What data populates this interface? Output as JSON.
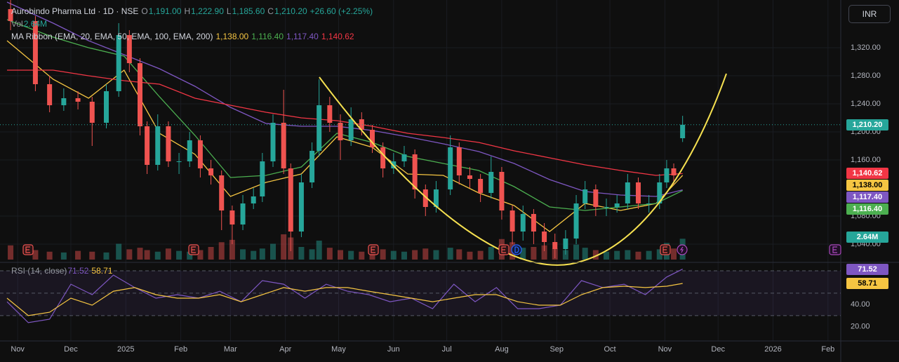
{
  "chart_data": {
    "type": "candlestick",
    "title": "Aurobindo Pharma Ltd · 1D · NSE",
    "ohlc": [
      {
        "key": "O",
        "label": "1,191.00"
      },
      {
        "key": "H",
        "label": "1,222.90"
      },
      {
        "key": "L",
        "label": "1,185.60"
      },
      {
        "key": "C",
        "label": "1,210.20"
      }
    ],
    "change": "+26.60 (+2.25%)",
    "currency": "INR",
    "up_color": "#26a69a",
    "down_color": "#ef5350",
    "x": [
      -4,
      10,
      18,
      26,
      34,
      42,
      50,
      57,
      63,
      69,
      73,
      79,
      85,
      91,
      97,
      103,
      109,
      115,
      121,
      127,
      133,
      138,
      144,
      150,
      154,
      160,
      166,
      170,
      176,
      182,
      188,
      194,
      200,
      206,
      212,
      218,
      224,
      230,
      236,
      244,
      249,
      255,
      261,
      267,
      273,
      279,
      285,
      291,
      297,
      303,
      309,
      315,
      320,
      326,
      332,
      338,
      344,
      350,
      356,
      362,
      366,
      370,
      375
    ],
    "open": [
      1375,
      1358,
      1268,
      1238,
      1248,
      1243,
      1213,
      1258,
      1338,
      1298,
      1208,
      1153,
      1208,
      1158,
      1158,
      1188,
      1148,
      1138,
      1088,
      1068,
      1098,
      1108,
      1158,
      1213,
      1148,
      1058,
      1128,
      1173,
      1238,
      1213,
      1188,
      1218,
      1203,
      1178,
      1148,
      1158,
      1168,
      1118,
      1093,
      1118,
      1178,
      1138,
      1133,
      1113,
      1143,
      1088,
      1058,
      1083,
      1058,
      1043,
      1033,
      1048,
      1098,
      1118,
      1093,
      1093,
      1098,
      1128,
      1098,
      1098,
      1128,
      1148,
      1191
    ],
    "high": [
      1388,
      1365,
      1280,
      1262,
      1258,
      1250,
      1268,
      1355,
      1345,
      1305,
      1215,
      1225,
      1215,
      1170,
      1200,
      1195,
      1160,
      1145,
      1095,
      1110,
      1120,
      1170,
      1225,
      1260,
      1155,
      1140,
      1185,
      1275,
      1250,
      1225,
      1235,
      1228,
      1210,
      1185,
      1170,
      1180,
      1175,
      1125,
      1130,
      1195,
      1185,
      1150,
      1140,
      1165,
      1150,
      1095,
      1095,
      1090,
      1070,
      1055,
      1060,
      1110,
      1130,
      1125,
      1105,
      1110,
      1140,
      1135,
      1110,
      1140,
      1160,
      1155,
      1222.9
    ],
    "low": [
      1345,
      1258,
      1228,
      1230,
      1232,
      1180,
      1205,
      1250,
      1285,
      1195,
      1140,
      1145,
      1150,
      1140,
      1150,
      1135,
      1125,
      1060,
      1040,
      1060,
      1090,
      1100,
      1150,
      1140,
      1030,
      1050,
      1120,
      1165,
      1200,
      1160,
      1180,
      1195,
      1170,
      1135,
      1140,
      1150,
      1105,
      1080,
      1085,
      1110,
      1125,
      1120,
      1100,
      1105,
      1075,
      1040,
      1045,
      1040,
      1030,
      1020,
      1025,
      1040,
      1090,
      1080,
      1080,
      1085,
      1090,
      1090,
      1085,
      1090,
      1120,
      1125,
      1185.6
    ],
    "close": [
      1358,
      1268,
      1238,
      1248,
      1243,
      1213,
      1258,
      1338,
      1298,
      1208,
      1153,
      1208,
      1158,
      1158,
      1188,
      1148,
      1138,
      1088,
      1068,
      1098,
      1108,
      1158,
      1213,
      1148,
      1058,
      1128,
      1173,
      1238,
      1213,
      1188,
      1218,
      1203,
      1178,
      1148,
      1158,
      1168,
      1118,
      1093,
      1118,
      1178,
      1138,
      1133,
      1113,
      1143,
      1088,
      1058,
      1083,
      1058,
      1043,
      1033,
      1048,
      1098,
      1118,
      1093,
      1093,
      1098,
      1128,
      1098,
      1098,
      1128,
      1148,
      1138,
      1210.2
    ],
    "last_label": "1,210.20",
    "xlim": [
      -6,
      463
    ],
    "xticks": [
      {
        "value": 0,
        "label": "Nov"
      },
      {
        "value": 30,
        "label": "Dec"
      },
      {
        "value": 61,
        "label": "2025"
      },
      {
        "value": 92,
        "label": "Feb"
      },
      {
        "value": 120,
        "label": "Mar"
      },
      {
        "value": 151,
        "label": "Apr"
      },
      {
        "value": 181,
        "label": "May"
      },
      {
        "value": 212,
        "label": "Jun"
      },
      {
        "value": 242,
        "label": "Jul"
      },
      {
        "value": 273,
        "label": "Aug"
      },
      {
        "value": 304,
        "label": "Sep"
      },
      {
        "value": 334,
        "label": "Oct"
      },
      {
        "value": 365,
        "label": "Nov"
      },
      {
        "value": 395,
        "label": "Dec"
      },
      {
        "value": 426,
        "label": "2026"
      },
      {
        "value": 457,
        "label": "Feb"
      }
    ],
    "ylim": [
      1018,
      1388
    ],
    "yticks": [
      {
        "value": 1040,
        "label": "1,040.00"
      },
      {
        "value": 1080,
        "label": "1,080.00"
      },
      {
        "value": 1160,
        "label": "1,160.00"
      },
      {
        "value": 1200,
        "label": "1,200.00"
      },
      {
        "value": 1240,
        "label": "1,240.00"
      },
      {
        "value": 1280,
        "label": "1,280.00"
      },
      {
        "value": 1320,
        "label": "1,320.00"
      }
    ],
    "grid": true,
    "volume": {
      "label": "Vol",
      "last_label": "2.64M",
      "ylim": [
        0,
        8
      ],
      "values": [
        1.8,
        1.2,
        1.0,
        0.9,
        1.1,
        1.0,
        0.9,
        2.0,
        1.3,
        1.5,
        1.2,
        1.0,
        1.4,
        1.1,
        1.0,
        1.2,
        1.6,
        2.2,
        2.5,
        1.3,
        1.1,
        1.4,
        2.0,
        3.2,
        2.8,
        1.6,
        1.3,
        2.4,
        1.5,
        1.2,
        1.1,
        1.0,
        1.0,
        1.3,
        1.1,
        1.0,
        1.2,
        1.4,
        1.2,
        1.5,
        1.3,
        1.0,
        1.1,
        1.6,
        2.6,
        2.2,
        1.5,
        1.6,
        1.8,
        1.4,
        1.2,
        1.9,
        1.5,
        1.2,
        1.0,
        1.1,
        1.2,
        1.0,
        1.1,
        1.3,
        2.1,
        1.4,
        2.64
      ]
    },
    "ma_ribbon": {
      "label": "MA Ribbon (EMA, 20, EMA, 50, EMA, 100, EMA, 200)",
      "x": [
        -6,
        20,
        40,
        60,
        80,
        100,
        120,
        140,
        160,
        180,
        200,
        220,
        240,
        260,
        280,
        300,
        320,
        340,
        360,
        375
      ],
      "series": [
        {
          "color": "#f5c542",
          "last_label": "1,138.00",
          "values": [
            1330,
            1275,
            1248,
            1288,
            1198,
            1168,
            1108,
            1128,
            1140,
            1193,
            1178,
            1140,
            1138,
            1113,
            1095,
            1058,
            1098,
            1088,
            1098,
            1138
          ]
        },
        {
          "color": "#4caf50",
          "last_label": "1,116.40",
          "values": [
            1360,
            1335,
            1320,
            1308,
            1250,
            1195,
            1135,
            1138,
            1150,
            1198,
            1185,
            1165,
            1155,
            1145,
            1122,
            1093,
            1088,
            1093,
            1098,
            1116.4
          ]
        },
        {
          "color": "#7e57c2",
          "last_label": "1,117.40",
          "values": [
            1385,
            1355,
            1330,
            1310,
            1290,
            1265,
            1235,
            1212,
            1208,
            1208,
            1202,
            1193,
            1183,
            1172,
            1155,
            1132,
            1115,
            1110,
            1108,
            1117.4
          ]
        },
        {
          "color": "#f23645",
          "last_label": "1,140.62",
          "values": [
            1288,
            1288,
            1280,
            1273,
            1268,
            1248,
            1238,
            1228,
            1220,
            1216,
            1208,
            1198,
            1192,
            1185,
            1173,
            1163,
            1153,
            1145,
            1138,
            1140.62
          ]
        }
      ]
    },
    "rsi": {
      "label": "RSI (14, close)",
      "ylim": [
        8,
        75
      ],
      "levels": [
        70,
        50,
        30
      ],
      "yticks": [
        {
          "value": 20,
          "label": "20.00"
        },
        {
          "value": 40,
          "label": "40.00"
        }
      ],
      "x": [
        -6,
        6,
        18,
        30,
        42,
        54,
        66,
        78,
        90,
        102,
        114,
        126,
        138,
        150,
        162,
        174,
        186,
        198,
        210,
        222,
        234,
        246,
        258,
        270,
        282,
        294,
        306,
        318,
        330,
        342,
        354,
        366,
        375
      ],
      "series": [
        {
          "color": "#7e57c2",
          "last_label": "71.52",
          "values": [
            42.4,
            23.7,
            26.8,
            58,
            48.7,
            66.2,
            55,
            45.6,
            48.7,
            45.6,
            51.8,
            42.4,
            61.2,
            58,
            45.6,
            58,
            51.8,
            48.7,
            42.4,
            45.6,
            36.2,
            58,
            42.4,
            55,
            36.2,
            36.2,
            39.3,
            61.2,
            55,
            58,
            48.7,
            64.4,
            71.52
          ]
        },
        {
          "color": "#f5c542",
          "last_label": "58.71",
          "values": [
            45.6,
            30,
            33,
            45.6,
            39.3,
            51.8,
            55,
            48.7,
            45.6,
            45.6,
            48.7,
            42.4,
            48.7,
            55,
            51.8,
            55,
            55,
            51.8,
            48.7,
            45.6,
            42.4,
            45.6,
            48.7,
            48.7,
            42.4,
            39.3,
            39.3,
            48.7,
            55,
            56.2,
            55,
            56.2,
            58.71
          ]
        }
      ]
    }
  }
}
